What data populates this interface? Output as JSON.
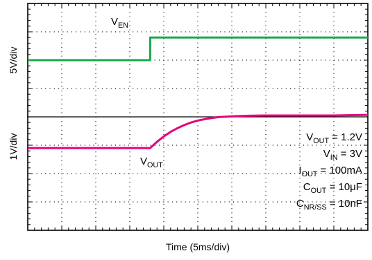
{
  "chart_data": {
    "type": "line",
    "title": "",
    "xlabel": "Time (5ms/div)",
    "x_divisions": 10,
    "x_units": "div",
    "upper_trace": {
      "ylabel": "5V/div",
      "y_divisions": 4,
      "series": [
        {
          "name": "V_EN",
          "label_main": "V",
          "label_sub": "EN",
          "color": "#1aa64b",
          "x": [
            0,
            3.6,
            3.6,
            10
          ],
          "y": [
            2.0,
            2.0,
            2.8,
            2.8
          ]
        }
      ]
    },
    "lower_trace": {
      "ylabel": "1V/div",
      "y_divisions": 4,
      "series": [
        {
          "name": "V_OUT",
          "label_main": "V",
          "label_sub": "OUT",
          "color": "#e6007e",
          "x": [
            0,
            3.6,
            3.8,
            4.0,
            4.2,
            4.4,
            4.6,
            4.8,
            5.0,
            5.3,
            5.6,
            6.0,
            6.5,
            7.0,
            8.0,
            9.0,
            10
          ],
          "y": [
            2.9,
            2.9,
            3.12,
            3.31,
            3.47,
            3.6,
            3.71,
            3.8,
            3.87,
            3.94,
            3.99,
            4.02,
            4.04,
            4.05,
            4.05,
            4.05,
            4.07
          ]
        }
      ]
    },
    "annotations": [
      {
        "main": "V",
        "sub": "OUT",
        "rest": " = 1.2V"
      },
      {
        "main": "V",
        "sub": "IN",
        "rest": " = 3V"
      },
      {
        "main": "I",
        "sub": "OUT",
        "rest": " = 100mA"
      },
      {
        "main": "C",
        "sub": "OUT",
        "rest": " = 10μF"
      },
      {
        "main": "C",
        "sub": "NR/SS",
        "rest": " = 10nF"
      }
    ],
    "grid": true
  }
}
